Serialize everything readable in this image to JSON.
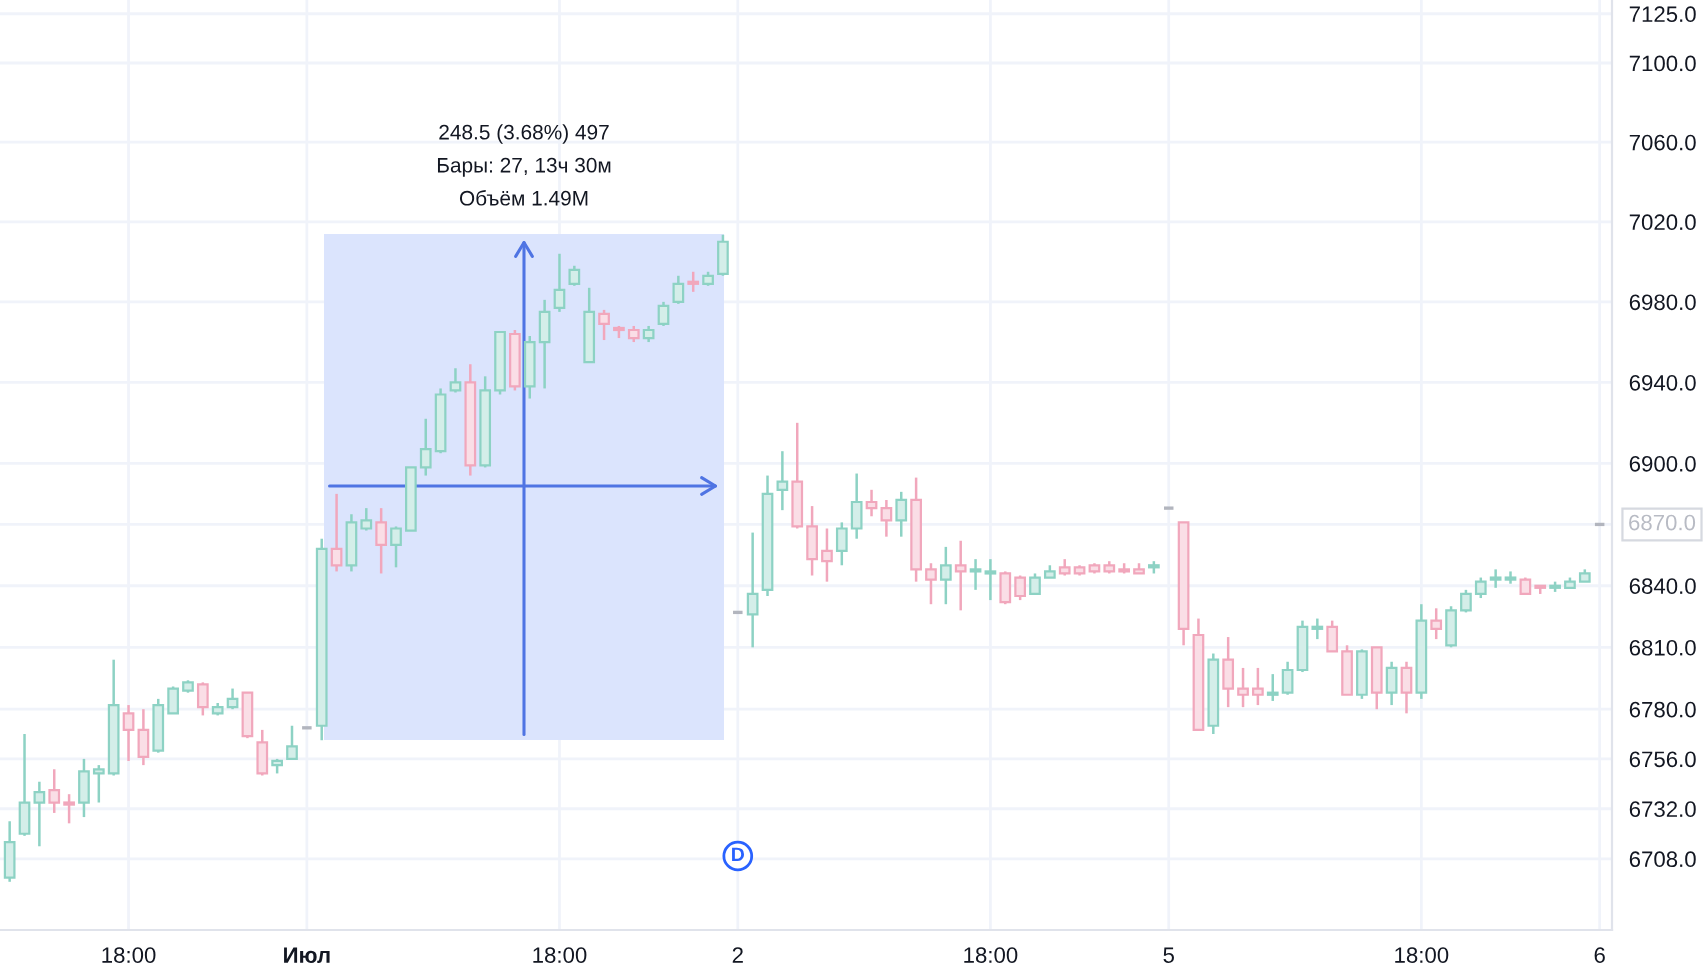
{
  "chart_data": {
    "type": "candlestick",
    "log": true,
    "grid": true,
    "categories": [
      null,
      null,
      null,
      null,
      null,
      null,
      null,
      null,
      "18:00",
      null,
      null,
      null,
      null,
      null,
      null,
      null,
      null,
      null,
      null,
      null,
      "Июл",
      null,
      null,
      null,
      null,
      null,
      null,
      null,
      null,
      null,
      null,
      null,
      null,
      null,
      null,
      null,
      null,
      "18:00",
      null,
      null,
      null,
      null,
      null,
      null,
      null,
      null,
      null,
      null,
      null,
      "2",
      null,
      null,
      null,
      null,
      null,
      null,
      null,
      null,
      null,
      null,
      null,
      null,
      null,
      null,
      null,
      null,
      "18:00",
      null,
      null,
      null,
      null,
      null,
      null,
      null,
      null,
      null,
      null,
      null,
      "5",
      null,
      null,
      null,
      null,
      null,
      null,
      null,
      null,
      null,
      null,
      null,
      null,
      null,
      null,
      null,
      null,
      "18:00",
      null,
      null,
      null,
      null,
      null,
      null,
      null,
      null,
      null,
      null,
      null,
      "6"
    ],
    "ohlc": [
      [
        6699,
        6726,
        6697,
        6716
      ],
      [
        6720,
        6768,
        6719,
        6735
      ],
      [
        6735,
        6745,
        6714,
        6740
      ],
      [
        6741,
        6751,
        6730,
        6735
      ],
      [
        6735,
        6739,
        6725,
        6734
      ],
      [
        6735,
        6756,
        6728,
        6750
      ],
      [
        6749,
        6753,
        6735,
        6751
      ],
      [
        6749,
        6804,
        6748,
        6782
      ],
      [
        6778,
        6782,
        6755,
        6770
      ],
      [
        6770,
        6780,
        6753,
        6757
      ],
      [
        6760,
        6785,
        6759,
        6782
      ],
      [
        6778,
        6791,
        6778,
        6790
      ],
      [
        6789,
        6794,
        6788,
        6793
      ],
      [
        6792,
        6793,
        6777,
        6781
      ],
      [
        6778,
        6783,
        6777,
        6781
      ],
      [
        6781,
        6790,
        6780,
        6785
      ],
      [
        6788,
        6788,
        6766,
        6767
      ],
      [
        6764,
        6770,
        6748,
        6749
      ],
      [
        6753,
        6756,
        6749,
        6755
      ],
      [
        6756,
        6772,
        6756,
        6762
      ],
      [
        6771,
        6771,
        6771,
        6771
      ],
      [
        6772,
        6863,
        6765,
        6858
      ],
      [
        6858,
        6885,
        6847,
        6850
      ],
      [
        6850,
        6875,
        6847,
        6871
      ],
      [
        6868,
        6878,
        6867,
        6872
      ],
      [
        6871,
        6878,
        6846,
        6860
      ],
      [
        6860,
        6869,
        6849,
        6868
      ],
      [
        6867,
        6898,
        6867,
        6898
      ],
      [
        6898,
        6922,
        6894,
        6907
      ],
      [
        6906,
        6937,
        6905,
        6934
      ],
      [
        6936,
        6947,
        6935,
        6940
      ],
      [
        6940,
        6949,
        6894,
        6899
      ],
      [
        6899,
        6943,
        6898,
        6936
      ],
      [
        6936,
        6965,
        6934,
        6965
      ],
      [
        6964,
        6966,
        6936,
        6938
      ],
      [
        6938,
        6963,
        6932,
        6960
      ],
      [
        6960,
        6981,
        6937,
        6975
      ],
      [
        6977,
        7004,
        6975,
        6986
      ],
      [
        6989,
        6998,
        6988,
        6996
      ],
      [
        6950,
        6987,
        6950,
        6975
      ],
      [
        6974,
        6976,
        6961,
        6969
      ],
      [
        6967,
        6968,
        6962,
        6966
      ],
      [
        6966,
        6968,
        6960,
        6962
      ],
      [
        6962,
        6968,
        6960,
        6966
      ],
      [
        6969,
        6980,
        6968,
        6978
      ],
      [
        6980,
        6993,
        6979,
        6989
      ],
      [
        6990,
        6995,
        6985,
        6989
      ],
      [
        6989,
        6995,
        6988,
        6993
      ],
      [
        6994,
        7013.5,
        6993,
        7010
      ],
      [
        6827,
        6827,
        6827,
        6827
      ],
      [
        6826,
        6866,
        6810,
        6836
      ],
      [
        6838,
        6894,
        6835,
        6885
      ],
      [
        6887,
        6906,
        6877,
        6891
      ],
      [
        6891,
        6920,
        6868,
        6869
      ],
      [
        6869,
        6879,
        6845,
        6853
      ],
      [
        6857,
        6868,
        6842,
        6852
      ],
      [
        6857,
        6871,
        6850,
        6868
      ],
      [
        6868,
        6895,
        6863,
        6881
      ],
      [
        6881,
        6887,
        6874,
        6878
      ],
      [
        6878,
        6882,
        6864,
        6872
      ],
      [
        6872,
        6886,
        6864,
        6882
      ],
      [
        6882,
        6893,
        6842,
        6848
      ],
      [
        6848,
        6851,
        6831,
        6843
      ],
      [
        6843,
        6859,
        6831,
        6850
      ],
      [
        6850,
        6862,
        6828,
        6847
      ],
      [
        6847,
        6853,
        6838,
        6848
      ],
      [
        6846,
        6853,
        6833,
        6847
      ],
      [
        6846,
        6847,
        6831,
        6832
      ],
      [
        6844,
        6845,
        6833,
        6835
      ],
      [
        6836,
        6846,
        6836,
        6844
      ],
      [
        6844,
        6850,
        6844,
        6847
      ],
      [
        6849,
        6853,
        6845,
        6846
      ],
      [
        6849,
        6850,
        6845,
        6846
      ],
      [
        6850,
        6851,
        6846,
        6847
      ],
      [
        6850,
        6852,
        6846,
        6847
      ],
      [
        6848,
        6851,
        6846,
        6847
      ],
      [
        6848,
        6851,
        6846,
        6846
      ],
      [
        6849,
        6852,
        6846,
        6850
      ],
      [
        6878,
        6878,
        6878,
        6878
      ],
      [
        6871,
        6871,
        6811,
        6819
      ],
      [
        6816,
        6824,
        6770,
        6770
      ],
      [
        6772,
        6807,
        6768,
        6804
      ],
      [
        6804,
        6815,
        6781,
        6790
      ],
      [
        6790,
        6800,
        6781,
        6787
      ],
      [
        6790,
        6800,
        6782,
        6787
      ],
      [
        6787,
        6797,
        6784,
        6788
      ],
      [
        6788,
        6803,
        6787,
        6799
      ],
      [
        6799,
        6823,
        6798,
        6820
      ],
      [
        6819,
        6824,
        6814,
        6820
      ],
      [
        6820,
        6823,
        6808,
        6808
      ],
      [
        6808,
        6811,
        6787,
        6787
      ],
      [
        6787,
        6809,
        6785,
        6808
      ],
      [
        6810,
        6810,
        6780,
        6788
      ],
      [
        6788,
        6803,
        6782,
        6800
      ],
      [
        6800,
        6803,
        6778,
        6788
      ],
      [
        6788,
        6831,
        6785,
        6823
      ],
      [
        6823,
        6829,
        6814,
        6819
      ],
      [
        6811,
        6830,
        6810,
        6828
      ],
      [
        6828,
        6838,
        6827,
        6836
      ],
      [
        6836,
        6844,
        6834,
        6842
      ],
      [
        6843,
        6848,
        6839,
        6844
      ],
      [
        6843,
        6847,
        6841,
        6844
      ],
      [
        6843,
        6844,
        6836,
        6836
      ],
      [
        6840,
        6840,
        6836,
        6839
      ],
      [
        6839,
        6842,
        6837,
        6840
      ],
      [
        6839,
        6844,
        6839,
        6842
      ],
      [
        6842,
        6848,
        6842,
        6846
      ],
      [
        6870,
        6870,
        6870,
        6870
      ]
    ],
    "colors": [
      "#8dd2c4",
      "#8dd2c4",
      "#8dd2c4",
      "#f1a7bc",
      "#f1a7bc",
      "#8dd2c4",
      "#8dd2c4",
      "#8dd2c4",
      "#f1a7bc",
      "#f1a7bc",
      "#8dd2c4",
      "#8dd2c4",
      "#8dd2c4",
      "#f1a7bc",
      "#8dd2c4",
      "#8dd2c4",
      "#f1a7bc",
      "#f1a7bc",
      "#8dd2c4",
      "#8dd2c4",
      "#b2b5be",
      "#8dd2c4",
      "#f1a7bc",
      "#8dd2c4",
      "#8dd2c4",
      "#f1a7bc",
      "#8dd2c4",
      "#8dd2c4",
      "#8dd2c4",
      "#8dd2c4",
      "#8dd2c4",
      "#f1a7bc",
      "#8dd2c4",
      "#8dd2c4",
      "#f1a7bc",
      "#8dd2c4",
      "#8dd2c4",
      "#8dd2c4",
      "#8dd2c4",
      "#8dd2c4",
      "#f1a7bc",
      "#f1a7bc",
      "#f1a7bc",
      "#8dd2c4",
      "#8dd2c4",
      "#8dd2c4",
      "#f1a7bc",
      "#8dd2c4",
      "#8dd2c4",
      "#b2b5be",
      "#8dd2c4",
      "#8dd2c4",
      "#8dd2c4",
      "#f1a7bc",
      "#f1a7bc",
      "#f1a7bc",
      "#8dd2c4",
      "#8dd2c4",
      "#f1a7bc",
      "#f1a7bc",
      "#8dd2c4",
      "#f1a7bc",
      "#f1a7bc",
      "#8dd2c4",
      "#f1a7bc",
      "#8dd2c4",
      "#8dd2c4",
      "#f1a7bc",
      "#f1a7bc",
      "#8dd2c4",
      "#8dd2c4",
      "#f1a7bc",
      "#f1a7bc",
      "#f1a7bc",
      "#f1a7bc",
      "#f1a7bc",
      "#f1a7bc",
      "#8dd2c4",
      "#b2b5be",
      "#f1a7bc",
      "#f1a7bc",
      "#8dd2c4",
      "#f1a7bc",
      "#f1a7bc",
      "#f1a7bc",
      "#8dd2c4",
      "#8dd2c4",
      "#8dd2c4",
      "#8dd2c4",
      "#f1a7bc",
      "#f1a7bc",
      "#8dd2c4",
      "#f1a7bc",
      "#8dd2c4",
      "#f1a7bc",
      "#8dd2c4",
      "#f1a7bc",
      "#8dd2c4",
      "#8dd2c4",
      "#8dd2c4",
      "#8dd2c4",
      "#8dd2c4",
      "#f1a7bc",
      "#f1a7bc",
      "#8dd2c4",
      "#8dd2c4",
      "#8dd2c4",
      "#b2b5be"
    ],
    "ylim": [
      6674,
      7132
    ],
    "yticks": [
      {
        "value": 7125,
        "label": "7125.0"
      },
      {
        "value": 7100,
        "label": "7100.0"
      },
      {
        "value": 7060,
        "label": "7060.0"
      },
      {
        "value": 7020,
        "label": "7020.0"
      },
      {
        "value": 6980,
        "label": "6980.0"
      },
      {
        "value": 6940,
        "label": "6940.0"
      },
      {
        "value": 6900,
        "label": "6900.0"
      },
      {
        "value": 6870,
        "label": null
      },
      {
        "value": 6840,
        "label": "6840.0"
      },
      {
        "value": 6810,
        "label": "6810.0"
      },
      {
        "value": 6780,
        "label": "6780.0"
      },
      {
        "value": 6756,
        "label": "6756.0"
      },
      {
        "value": 6732,
        "label": "6732.0"
      },
      {
        "value": 6708,
        "label": "6708.0"
      }
    ],
    "annotations": [
      "248.5 (3.68%) 497",
      "Бары: 27, 13ч 30м",
      "Объём 1.49M",
      {
        "text": "D",
        "x": "2"
      },
      "6870.0"
    ]
  }
}
